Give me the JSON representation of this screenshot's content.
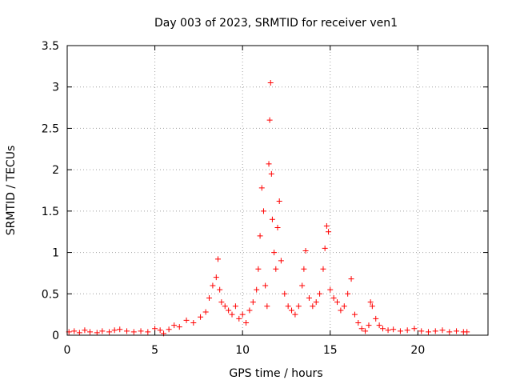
{
  "chart_data": {
    "type": "scatter",
    "title": "Day 003 of 2023, SRMTID for receiver ven1",
    "xlabel": "GPS time / hours",
    "ylabel": "SRMTID / TECUs",
    "xlim": [
      0,
      24
    ],
    "ylim": [
      0,
      3.5
    ],
    "xticks": [
      0,
      5,
      10,
      15,
      20
    ],
    "xtick_labels": [
      "0",
      "5",
      "10",
      "15",
      "20"
    ],
    "yticks": [
      0,
      0.5,
      1,
      1.5,
      2,
      2.5,
      3,
      3.5
    ],
    "ytick_labels": [
      "0",
      "0.5",
      "1",
      "1.5",
      "2",
      "2.5",
      "3",
      "3.5"
    ],
    "grid": true,
    "marker": "+",
    "marker_color": "#ff0000",
    "series": [
      {
        "name": "SRMTID",
        "x": [
          0.1,
          0.4,
          0.7,
          1.0,
          1.3,
          1.7,
          2.0,
          2.4,
          2.7,
          3.0,
          3.4,
          3.8,
          4.2,
          4.6,
          5.0,
          5.3,
          5.5,
          5.8,
          6.1,
          6.4,
          6.8,
          7.2,
          7.6,
          7.9,
          8.1,
          8.3,
          8.5,
          8.6,
          8.7,
          8.8,
          9.0,
          9.2,
          9.4,
          9.6,
          9.8,
          10.0,
          10.2,
          10.4,
          10.6,
          10.8,
          10.9,
          11.0,
          11.1,
          11.2,
          11.3,
          11.4,
          11.5,
          11.55,
          11.6,
          11.65,
          11.7,
          11.8,
          11.9,
          12.0,
          12.1,
          12.2,
          12.4,
          12.6,
          12.8,
          13.0,
          13.2,
          13.4,
          13.5,
          13.6,
          13.8,
          14.0,
          14.2,
          14.4,
          14.6,
          14.7,
          14.8,
          14.9,
          15.0,
          15.2,
          15.4,
          15.6,
          15.8,
          16.0,
          16.2,
          16.4,
          16.6,
          16.8,
          17.0,
          17.2,
          17.3,
          17.4,
          17.6,
          17.8,
          18.0,
          18.3,
          18.6,
          19.0,
          19.4,
          19.8,
          20.2,
          20.6,
          21.0,
          21.4,
          21.8,
          22.2,
          22.6,
          22.8
        ],
        "y": [
          0.04,
          0.05,
          0.03,
          0.06,
          0.04,
          0.03,
          0.05,
          0.04,
          0.06,
          0.07,
          0.05,
          0.04,
          0.05,
          0.04,
          0.08,
          0.06,
          0.02,
          0.07,
          0.12,
          0.1,
          0.18,
          0.15,
          0.22,
          0.28,
          0.45,
          0.6,
          0.7,
          0.92,
          0.55,
          0.4,
          0.35,
          0.3,
          0.25,
          0.35,
          0.2,
          0.25,
          0.15,
          0.3,
          0.4,
          0.55,
          0.8,
          1.2,
          1.78,
          1.5,
          0.6,
          0.35,
          2.07,
          2.6,
          3.05,
          1.95,
          1.4,
          1.0,
          0.8,
          1.3,
          1.62,
          0.9,
          0.5,
          0.35,
          0.3,
          0.25,
          0.35,
          0.6,
          0.8,
          1.02,
          0.45,
          0.35,
          0.4,
          0.5,
          0.8,
          1.05,
          1.32,
          1.25,
          0.55,
          0.45,
          0.4,
          0.3,
          0.35,
          0.5,
          0.68,
          0.25,
          0.15,
          0.08,
          0.05,
          0.12,
          0.4,
          0.35,
          0.2,
          0.12,
          0.08,
          0.06,
          0.07,
          0.05,
          0.06,
          0.08,
          0.05,
          0.04,
          0.05,
          0.06,
          0.04,
          0.05,
          0.04,
          0.04
        ]
      }
    ]
  }
}
